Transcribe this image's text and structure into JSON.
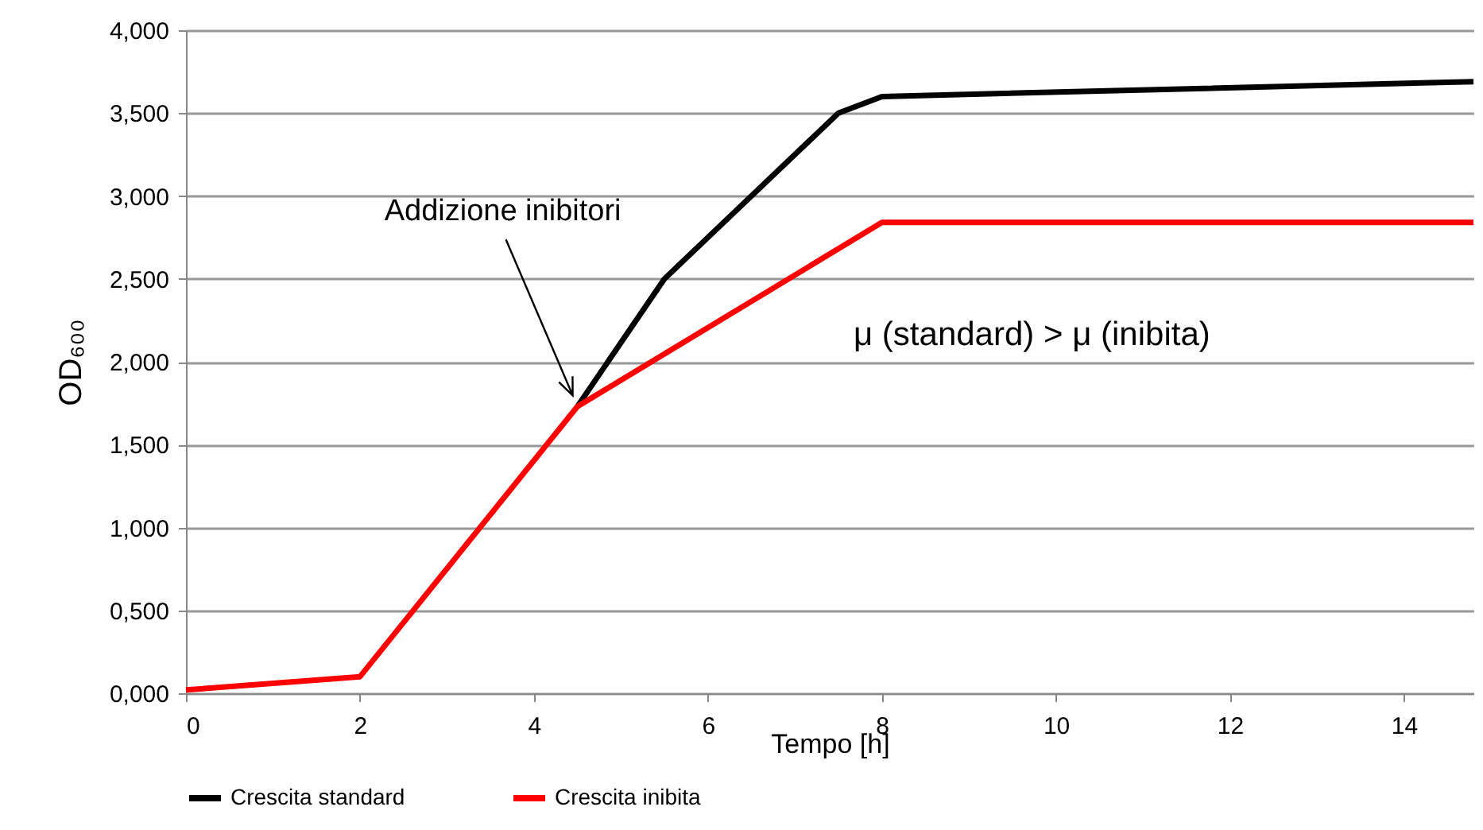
{
  "chart_data": {
    "type": "line",
    "xlabel": "Tempo [h]",
    "ylabel": "OD₆₀₀",
    "xlim": [
      0,
      14.8
    ],
    "xticks": [
      0,
      2,
      4,
      6,
      8,
      10,
      12,
      14
    ],
    "ylim": [
      0,
      4
    ],
    "yticks": [
      {
        "value": 0,
        "label": "0,000"
      },
      {
        "value": 0.5,
        "label": "0,500"
      },
      {
        "value": 1,
        "label": "1,000"
      },
      {
        "value": 1.5,
        "label": "1,500"
      },
      {
        "value": 2,
        "label": "2,000"
      },
      {
        "value": 2.5,
        "label": "2,500"
      },
      {
        "value": 3,
        "label": "3,000"
      },
      {
        "value": 3.5,
        "label": "3,500"
      },
      {
        "value": 4,
        "label": "4,000"
      }
    ],
    "grid": "y",
    "legend": "bottom",
    "marker": "none",
    "line_style": "solid",
    "series": [
      {
        "name": "Crescita standard",
        "color": "#000000",
        "x": [
          4.5,
          5.5,
          7.5,
          8,
          14.8
        ],
        "values": [
          1.73,
          2.5,
          3.5,
          3.6,
          3.69
        ]
      },
      {
        "name": "Crescita inibita",
        "color": "#ff0000",
        "x": [
          0,
          2,
          4.5,
          8,
          14.8
        ],
        "values": [
          0.02,
          0.1,
          1.73,
          2.84,
          2.84
        ]
      }
    ],
    "annotations": [
      {
        "text": "Addizione inibitori",
        "x": 4.5,
        "y": 1.73
      },
      "μ (standard) > μ (inibita)"
    ]
  }
}
